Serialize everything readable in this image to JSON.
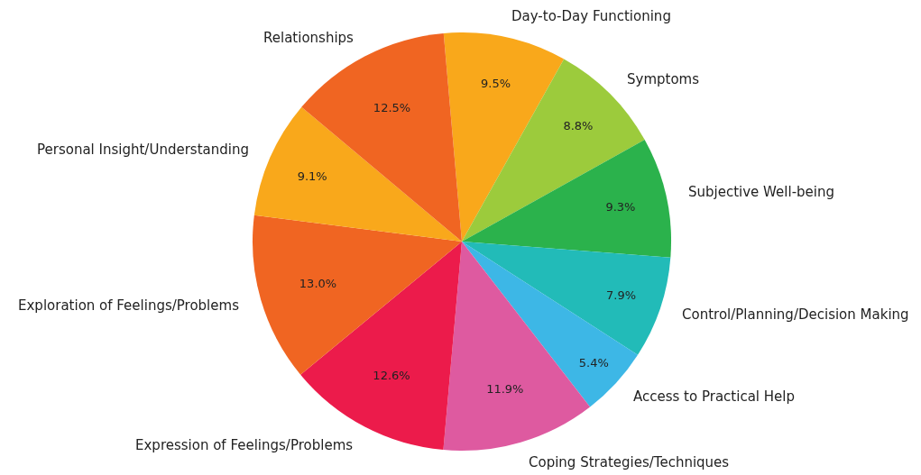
{
  "chart_data": {
    "type": "pie",
    "categories": [
      "Day-to-Day Functioning",
      "Symptoms",
      "Subjective Well-being",
      "Control/Planning/Decision Making",
      "Access to Practical Help",
      "Coping Strategies/Techniques",
      "Expression of Feelings/Problems",
      "Exploration of Feelings/Problems",
      "Personal Insight/Understanding",
      "Relationships"
    ],
    "values": [
      9.5,
      8.8,
      9.3,
      7.9,
      5.4,
      11.9,
      12.6,
      13.0,
      9.1,
      12.5
    ],
    "value_labels": [
      "9.5%",
      "8.8%",
      "9.3%",
      "7.9%",
      "5.4%",
      "11.9%",
      "12.6%",
      "13.0%",
      "9.1%",
      "12.5%"
    ],
    "colors": [
      "#f9a81b",
      "#9ccb3c",
      "#2bb24c",
      "#22bbb8",
      "#3db7e6",
      "#de5aa0",
      "#ec1b4b",
      "#f06522",
      "#f9a81b",
      "#f06522"
    ]
  }
}
